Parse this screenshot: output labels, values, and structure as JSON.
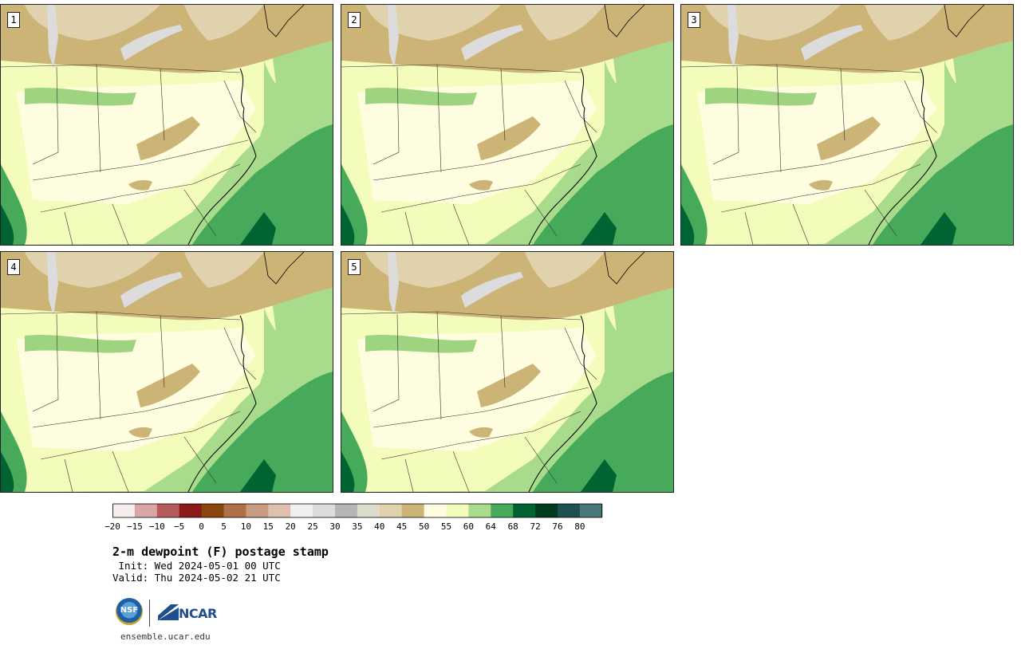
{
  "panels": [
    {
      "label": "1"
    },
    {
      "label": "2"
    },
    {
      "label": "3"
    },
    {
      "label": "4"
    },
    {
      "label": "5"
    }
  ],
  "colorbar": {
    "levels": [
      "−20",
      "−15",
      "−10",
      "−5",
      "0",
      "5",
      "10",
      "15",
      "20",
      "25",
      "30",
      "35",
      "40",
      "45",
      "50",
      "55",
      "60",
      "64",
      "68",
      "72",
      "76",
      "80"
    ],
    "colors": [
      "#f5ecec",
      "#d8a6a6",
      "#b45c5c",
      "#8c1a1a",
      "#8a4510",
      "#ad7048",
      "#c99b80",
      "#dfbfae",
      "#f0f0f0",
      "#dcdcdc",
      "#b6b6b6",
      "#dcdccc",
      "#e0d2ac",
      "#ccb477",
      "#fffde0",
      "#f4fcbc",
      "#a8dc8c",
      "#46aa5a",
      "#006432",
      "#003c1e",
      "#1e5050",
      "#4a7878"
    ]
  },
  "title": {
    "main": "2-m dewpoint (F) postage stamp",
    "init": " Init: Wed 2024-05-01 00 UTC",
    "valid": "Valid: Thu 2024-05-02 21 UTC"
  },
  "footer": {
    "nsf": "NSF",
    "ncar": "NCAR",
    "site": "ensemble.ucar.edu"
  }
}
